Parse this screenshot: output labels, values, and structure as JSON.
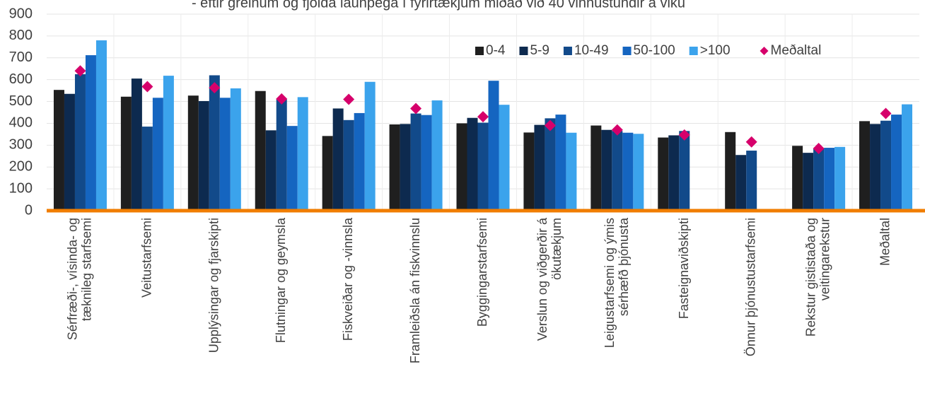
{
  "chart_data": {
    "type": "bar",
    "subtitle": "- eftir greinum og fjölda launþega í fyrirtækjum miðað við 40 vinnustundir á viku",
    "categories": [
      "Sérfræði-, vísinda- og\ntæknileg starfsemi",
      "Veitustarfsemi",
      "Upplýsingar og fjarskipti",
      "Flutningar og geymsla",
      "Fiskveiðar og -vinnsla",
      "Framleiðsla án fiskvinnslu",
      "Byggingarstarfsemi",
      "Verslun og viðgerðir á\nökutækjum",
      "Leigustarfsemi og ýmis\nsérhæfð þjónusta",
      "Fasteignaviðskipti",
      "Önnur þjónustustarfsemi",
      "Rekstur gististaða og\nveitingarekstur",
      "Meðaltal"
    ],
    "series": [
      {
        "name": "0-4",
        "color": "#1f1f1f",
        "values": [
          553,
          522,
          527,
          548,
          342,
          395,
          400,
          358,
          390,
          335,
          360,
          297,
          410
        ]
      },
      {
        "name": "5-9",
        "color": "#0d2a4f",
        "values": [
          535,
          605,
          502,
          368,
          468,
          397,
          425,
          393,
          370,
          345,
          255,
          265,
          397
        ]
      },
      {
        "name": "10-49",
        "color": "#124a8a",
        "values": [
          625,
          385,
          620,
          510,
          415,
          445,
          403,
          423,
          365,
          365,
          275,
          285,
          412
        ]
      },
      {
        "name": "50-100",
        "color": "#1565c0",
        "values": [
          712,
          517,
          517,
          388,
          447,
          438,
          595,
          440,
          357,
          null,
          null,
          288,
          440
        ]
      },
      {
        "name": ">100",
        "color": "#3ba3ec",
        "values": [
          780,
          618,
          560,
          520,
          590,
          505,
          485,
          357,
          352,
          null,
          null,
          292,
          487
        ]
      },
      {
        "name": "Meðaltal",
        "color": "#d6006b",
        "mark": "diamond",
        "values": [
          640,
          568,
          563,
          512,
          510,
          468,
          430,
          390,
          370,
          347,
          315,
          285,
          445
        ]
      }
    ],
    "ylim": [
      0,
      900
    ],
    "yticks": [
      0,
      100,
      200,
      300,
      400,
      500,
      600,
      700,
      800,
      900
    ],
    "grid": true,
    "axis_color": "#f07d00",
    "legend": "top-right"
  }
}
